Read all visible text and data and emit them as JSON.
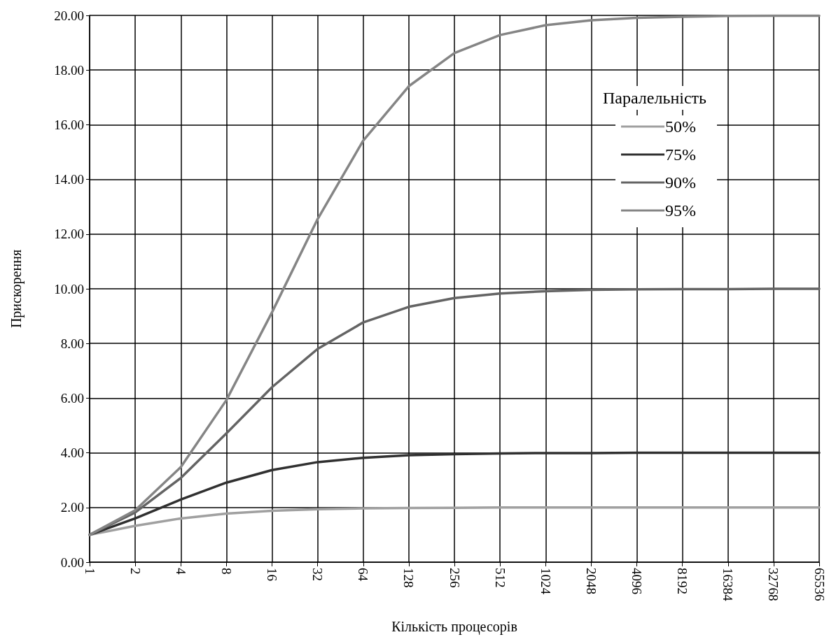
{
  "chart_data": {
    "type": "line",
    "xlabel": "Кількість процесорів",
    "ylabel": "Прискорення",
    "legend_title": "Паралельність",
    "legend": "top right",
    "grid": true,
    "marker": "none",
    "line_style": "solid",
    "categories": [
      "1",
      "2",
      "4",
      "8",
      "16",
      "32",
      "64",
      "128",
      "256",
      "512",
      "1024",
      "2048",
      "4096",
      "8192",
      "16384",
      "32768",
      "65536"
    ],
    "ylim": [
      0,
      20
    ],
    "yticks": [
      {
        "value": 0,
        "label": "0.00"
      },
      {
        "value": 2,
        "label": "2.00"
      },
      {
        "value": 4,
        "label": "4.00"
      },
      {
        "value": 6,
        "label": "6.00"
      },
      {
        "value": 8,
        "label": "8.00"
      },
      {
        "value": 10,
        "label": "10.00"
      },
      {
        "value": 12,
        "label": "12.00"
      },
      {
        "value": 14,
        "label": "14.00"
      },
      {
        "value": 16,
        "label": "16.00"
      },
      {
        "value": 18,
        "label": "18.00"
      },
      {
        "value": 20,
        "label": "20.00"
      }
    ],
    "series": [
      {
        "name": "50%",
        "color": "#a0a0a0",
        "values": [
          1,
          1.33,
          1.6,
          1.78,
          1.88,
          1.94,
          1.97,
          1.98,
          1.99,
          2,
          2,
          2,
          2,
          2,
          2,
          2,
          2
        ]
      },
      {
        "name": "75%",
        "color": "#303030",
        "values": [
          1,
          1.6,
          2.29,
          2.91,
          3.37,
          3.66,
          3.82,
          3.91,
          3.95,
          3.98,
          3.99,
          3.99,
          4,
          4,
          4,
          4,
          4
        ]
      },
      {
        "name": "90%",
        "color": "#646464",
        "values": [
          1,
          1.82,
          3.08,
          4.71,
          6.4,
          7.8,
          8.77,
          9.34,
          9.66,
          9.83,
          9.91,
          9.96,
          9.98,
          9.99,
          9.99,
          10,
          10
        ]
      },
      {
        "name": "95%",
        "color": "#858585",
        "values": [
          1,
          1.9,
          3.48,
          5.93,
          9.14,
          12.55,
          15.42,
          17.41,
          18.62,
          19.28,
          19.64,
          19.82,
          19.91,
          19.95,
          19.98,
          19.99,
          19.99
        ]
      }
    ]
  }
}
